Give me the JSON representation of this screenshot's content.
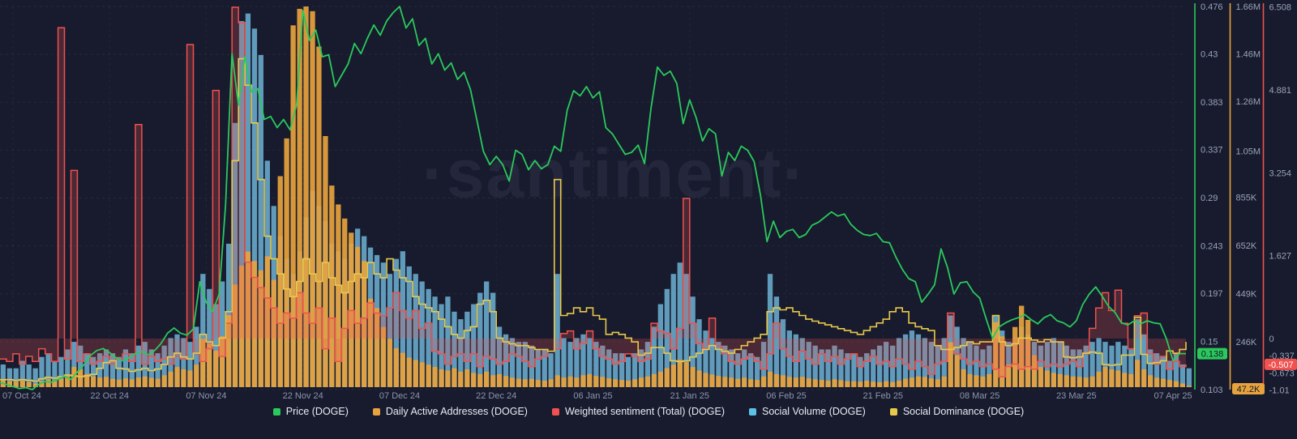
{
  "watermark": {
    "text": "·santiment·"
  },
  "page": {
    "background": "#171b2d"
  },
  "legend": {
    "items": [
      {
        "key": "price",
        "label": "Price (DOGE)",
        "color": "#2bc95c"
      },
      {
        "key": "daily_active_addresses",
        "label": "Daily Active Addresses (DOGE)",
        "color": "#e8a33d"
      },
      {
        "key": "weighted_sentiment",
        "label": "Weighted sentiment (Total) (DOGE)",
        "color": "#f0524f"
      },
      {
        "key": "social_volume",
        "label": "Social Volume (DOGE)",
        "color": "#5bc2e7"
      },
      {
        "key": "social_dominance",
        "label": "Social Dominance (DOGE)",
        "color": "#e8c row94b"
      }
    ]
  },
  "x_axis": {
    "tick_labels": [
      "07 Oct 24",
      "22 Oct 24",
      "07 Nov 24",
      "22 Nov 24",
      "07 Dec 24",
      "22 Dec 24",
      "06 Jan 25",
      "21 Jan 25",
      "06 Feb 25",
      "21 Feb 25",
      "08 Mar 25",
      "23 Mar 25",
      "07 Apr 25"
    ]
  },
  "y_axes": {
    "price": {
      "color": "#2bc95c",
      "ticks": [
        {
          "label": "0.476",
          "value": 0.476
        },
        {
          "label": "0.43",
          "value": 0.43
        },
        {
          "label": "0.383",
          "value": 0.383
        },
        {
          "label": "0.337",
          "value": 0.337
        },
        {
          "label": "0.29",
          "value": 0.29
        },
        {
          "label": "0.243",
          "value": 0.243
        },
        {
          "label": "0.197",
          "value": 0.197
        },
        {
          "label": "0.15",
          "value": 0.15
        },
        {
          "label": "0.103",
          "value": 0.103
        }
      ],
      "current": {
        "label": "0.138",
        "value": 0.138
      }
    },
    "daily_active_addresses": {
      "color": "#e8a33d",
      "ticks": [
        {
          "label": "1.66M",
          "value": 1660
        },
        {
          "label": "1.46M",
          "value": 1460
        },
        {
          "label": "1.26M",
          "value": 1260
        },
        {
          "label": "1.05M",
          "value": 1050
        },
        {
          "label": "855K",
          "value": 855
        },
        {
          "label": "652K",
          "value": 652
        },
        {
          "label": "449K",
          "value": 449
        },
        {
          "label": "246K",
          "value": 246
        }
      ],
      "current": {
        "label": "47.2K",
        "value": 47.2
      }
    },
    "weighted_sentiment": {
      "color": "#f0524f",
      "ticks": [
        {
          "label": "6.508",
          "value": 6.508
        },
        {
          "label": "4.881",
          "value": 4.881
        },
        {
          "label": "3.254",
          "value": 3.254
        },
        {
          "label": "1.627",
          "value": 1.627
        },
        {
          "label": "0",
          "value": 0
        },
        {
          "label": "-0.337",
          "value": -0.337
        },
        {
          "label": "-0.673",
          "value": -0.673
        },
        {
          "label": "-1.01",
          "value": -1.01
        }
      ],
      "current": {
        "label": "-0.507",
        "value": -0.507
      }
    }
  },
  "chart_data": {
    "type": "mixed-timeseries",
    "title": "",
    "start_date": "05 Oct 24",
    "end_date": "07 Apr 25",
    "interval": "1 day",
    "points": 185,
    "x_tick_dates": [
      "07 Oct 24",
      "22 Oct 24",
      "07 Nov 24",
      "22 Nov 24",
      "07 Dec 24",
      "22 Dec 24",
      "06 Jan 25",
      "21 Jan 25",
      "06 Feb 25",
      "21 Feb 25",
      "08 Mar 25",
      "23 Mar 25",
      "07 Apr 25"
    ],
    "legend_position": "bottom",
    "grid": "dashed",
    "series": [
      {
        "key": "price",
        "name": "Price (DOGE)",
        "type": "line",
        "color": "#2bc95c",
        "axis_range": [
          0.103,
          0.476
        ],
        "last_value": 0.138,
        "values": [
          0.11,
          0.108,
          0.106,
          0.104,
          0.105,
          0.103,
          0.108,
          0.111,
          0.11,
          0.113,
          0.116,
          0.113,
          0.12,
          0.127,
          0.136,
          0.141,
          0.143,
          0.139,
          0.134,
          0.131,
          0.134,
          0.138,
          0.14,
          0.137,
          0.141,
          0.148,
          0.158,
          0.163,
          0.158,
          0.156,
          0.162,
          0.208,
          0.188,
          0.179,
          0.196,
          0.283,
          0.43,
          0.38,
          0.427,
          0.393,
          0.396,
          0.366,
          0.369,
          0.358,
          0.366,
          0.356,
          0.38,
          0.472,
          0.443,
          0.453,
          0.427,
          0.429,
          0.398,
          0.409,
          0.42,
          0.44,
          0.43,
          0.445,
          0.458,
          0.448,
          0.462,
          0.47,
          0.476,
          0.455,
          0.464,
          0.438,
          0.445,
          0.42,
          0.43,
          0.414,
          0.421,
          0.405,
          0.412,
          0.395,
          0.365,
          0.335,
          0.322,
          0.33,
          0.322,
          0.306,
          0.336,
          0.332,
          0.317,
          0.326,
          0.318,
          0.322,
          0.34,
          0.335,
          0.375,
          0.394,
          0.389,
          0.398,
          0.387,
          0.393,
          0.358,
          0.352,
          0.342,
          0.332,
          0.334,
          0.341,
          0.323,
          0.377,
          0.417,
          0.409,
          0.413,
          0.401,
          0.362,
          0.385,
          0.368,
          0.345,
          0.357,
          0.352,
          0.311,
          0.334,
          0.326,
          0.34,
          0.336,
          0.325,
          0.292,
          0.247,
          0.267,
          0.251,
          0.257,
          0.259,
          0.251,
          0.254,
          0.263,
          0.266,
          0.271,
          0.276,
          0.272,
          0.274,
          0.264,
          0.258,
          0.254,
          0.253,
          0.255,
          0.247,
          0.246,
          0.232,
          0.22,
          0.211,
          0.208,
          0.188,
          0.196,
          0.205,
          0.24,
          0.222,
          0.196,
          0.207,
          0.208,
          0.198,
          0.192,
          0.172,
          0.153,
          0.164,
          0.168,
          0.171,
          0.173,
          0.176,
          0.171,
          0.167,
          0.173,
          0.176,
          0.17,
          0.168,
          0.164,
          0.17,
          0.186,
          0.196,
          0.203,
          0.194,
          0.184,
          0.178,
          0.168,
          0.166,
          0.17,
          0.167,
          0.17,
          0.168,
          0.167,
          0.152,
          0.131,
          0.138,
          0.138
        ]
      },
      {
        "key": "daily_active_addresses",
        "name": "Daily Active Addresses (DOGE)",
        "type": "bar",
        "color": "#e8a33d",
        "unit": "K addresses",
        "axis_range_k": [
          44.5,
          1660
        ],
        "last_value_k": 47.2,
        "values": [
          75,
          70,
          68,
          72,
          65,
          60,
          70,
          78,
          74,
          80,
          95,
          130,
          120,
          100,
          90,
          85,
          88,
          80,
          76,
          82,
          78,
          85,
          90,
          84,
          80,
          95,
          110,
          130,
          120,
          115,
          140,
          250,
          230,
          200,
          260,
          350,
          480,
          560,
          620,
          580,
          540,
          600,
          500,
          940,
          1100,
          1580,
          1650,
          1660,
          1640,
          1490,
          1110,
          900,
          820,
          760,
          700,
          640,
          580,
          420,
          380,
          300,
          250,
          210,
          190,
          170,
          160,
          150,
          140,
          130,
          120,
          115,
          125,
          110,
          120,
          105,
          100,
          110,
          95,
          100,
          92,
          85,
          80,
          78,
          80,
          75,
          72,
          78,
          95,
          85,
          90,
          85,
          95,
          100,
          92,
          88,
          82,
          78,
          75,
          72,
          78,
          85,
          90,
          100,
          110,
          125,
          140,
          160,
          150,
          130,
          115,
          105,
          98,
          92,
          88,
          85,
          80,
          85,
          78,
          75,
          90,
          110,
          100,
          95,
          88,
          85,
          88,
          82,
          78,
          75,
          72,
          78,
          74,
          70,
          70,
          68,
          72,
          68,
          65,
          70,
          66,
          72,
          80,
          85,
          90,
          88,
          82,
          78,
          90,
          235,
          180,
          120,
          100,
          95,
          90,
          100,
          320,
          260,
          140,
          300,
          390,
          330,
          180,
          130,
          115,
          105,
          100,
          95,
          90,
          88,
          85,
          90,
          110,
          130,
          120,
          115,
          105,
          100,
          160,
          120,
          95,
          85,
          80,
          75,
          70,
          60,
          47.2
        ]
      },
      {
        "key": "weighted_sentiment",
        "name": "Weighted sentiment (Total) (DOGE)",
        "type": "step-area",
        "color": "#f0524f",
        "baseline": 0,
        "axis_range": [
          -1.01,
          6.508
        ],
        "last_value": -0.507,
        "values": [
          -0.4,
          -0.45,
          -0.3,
          -0.5,
          -0.35,
          -0.45,
          -0.2,
          -0.3,
          -0.45,
          6.1,
          -0.4,
          3.3,
          -0.45,
          -0.3,
          -0.5,
          -0.45,
          -0.35,
          -0.5,
          -0.4,
          -0.3,
          -0.45,
          4.2,
          -0.5,
          -0.35,
          -0.45,
          -0.4,
          -0.5,
          -0.35,
          -0.4,
          5.77,
          -0.3,
          -0.45,
          -0.2,
          4.87,
          -0.35,
          0.3,
          6.5,
          6.2,
          1.5,
          1.2,
          1.0,
          0.8,
          0.6,
          0.3,
          0.5,
          0.4,
          0.9,
          0.5,
          0.3,
          0.6,
          -0.2,
          0.4,
          -0.45,
          0.2,
          0.55,
          0.3,
          0.4,
          0.7,
          0.5,
          0.45,
          0.6,
          0.9,
          0.55,
          0.4,
          0.55,
          0.2,
          0.3,
          -0.25,
          -0.3,
          -0.5,
          -0.35,
          -0.3,
          -0.45,
          -0.3,
          -0.55,
          -0.35,
          -0.4,
          -0.5,
          -0.45,
          -0.3,
          -0.35,
          -0.45,
          -0.55,
          -0.4,
          -0.35,
          -0.25,
          -0.2,
          0.1,
          0.15,
          -0.2,
          -0.1,
          0.15,
          -0.2,
          -0.35,
          -0.4,
          -0.5,
          -0.45,
          -0.3,
          -0.35,
          -0.45,
          -0.4,
          0.3,
          0.15,
          0.1,
          -0.2,
          0.2,
          2.75,
          0.3,
          -0.1,
          -0.2,
          0.4,
          -0.15,
          -0.3,
          -0.45,
          -0.5,
          -0.4,
          -0.35,
          -0.45,
          -0.6,
          -0.3,
          0.3,
          -0.2,
          -0.35,
          -0.45,
          -0.25,
          -0.4,
          -0.5,
          -0.3,
          -0.45,
          -0.35,
          -0.5,
          -0.4,
          -0.3,
          -0.55,
          -0.45,
          -0.35,
          -0.5,
          -0.45,
          -0.55,
          -0.4,
          -0.5,
          -0.6,
          -0.45,
          -0.55,
          -0.7,
          -0.5,
          -0.45,
          0.5,
          -0.3,
          -0.4,
          -0.5,
          -0.45,
          -0.55,
          -0.5,
          -0.6,
          -0.75,
          -0.55,
          -0.5,
          -0.6,
          -0.55,
          -0.6,
          -0.45,
          -0.55,
          -0.5,
          -0.55,
          -0.5,
          -0.45,
          -0.55,
          -0.3,
          0.2,
          0.6,
          0.9,
          0.55,
          0.95,
          0.3,
          -0.2,
          0.45,
          0.5,
          -0.3,
          -0.5,
          -0.35,
          -0.6,
          -0.45,
          -0.55,
          -0.507
        ]
      },
      {
        "key": "social_volume",
        "name": "Social Volume (DOGE)",
        "type": "bar",
        "color": "#74bcdf",
        "unit": "index 0-100 of bar height",
        "values": [
          6,
          5,
          5,
          7,
          6,
          5,
          8,
          9,
          7,
          8,
          10,
          12,
          11,
          9,
          8,
          9,
          10,
          9,
          8,
          10,
          9,
          11,
          12,
          10,
          9,
          11,
          13,
          14,
          13,
          12,
          16,
          30,
          26,
          22,
          28,
          38,
          70,
          97,
          99,
          95,
          88,
          60,
          48,
          40,
          34,
          30,
          36,
          45,
          52,
          48,
          44,
          38,
          36,
          34,
          38,
          42,
          40,
          37,
          35,
          33,
          30,
          34,
          36,
          32,
          30,
          28,
          26,
          24,
          22,
          24,
          20,
          18,
          20,
          22,
          25,
          28,
          25,
          16,
          14,
          13,
          12,
          12,
          11,
          10,
          10,
          9,
          30,
          13,
          12,
          13,
          14,
          13,
          12,
          11,
          10,
          9,
          9,
          8,
          9,
          10,
          12,
          16,
          22,
          26,
          30,
          33,
          30,
          24,
          18,
          15,
          13,
          12,
          11,
          10,
          9,
          10,
          9,
          8,
          12,
          30,
          24,
          18,
          15,
          14,
          13,
          12,
          11,
          10,
          10,
          11,
          10,
          9,
          9,
          8,
          9,
          10,
          11,
          12,
          11,
          13,
          14,
          15,
          14,
          13,
          12,
          11,
          13,
          19,
          16,
          13,
          12,
          11,
          10,
          11,
          19,
          15,
          12,
          13,
          16,
          14,
          12,
          11,
          12,
          13,
          12,
          11,
          10,
          10,
          11,
          12,
          13,
          12,
          11,
          12,
          11,
          10,
          18,
          14,
          10,
          9,
          8,
          7,
          9,
          6,
          5
        ]
      },
      {
        "key": "social_dominance",
        "name": "Social Dominance (DOGE)",
        "type": "step-line",
        "color": "#e8c94b",
        "unit": "index 0-100 of plot height",
        "values": [
          2,
          2,
          1.8,
          2,
          1.8,
          1.6,
          2.2,
          2.6,
          2.4,
          2.8,
          3.2,
          3,
          2.8,
          3,
          3.4,
          5,
          6.5,
          7,
          5,
          4.8,
          4.2,
          4.6,
          5,
          4.4,
          4.8,
          6,
          8,
          9,
          8,
          7.5,
          9,
          14,
          12,
          11,
          13,
          20,
          60,
          87,
          80,
          70,
          55,
          40,
          34,
          30,
          26,
          24,
          28,
          34,
          30,
          28,
          33,
          29,
          27,
          25,
          28,
          30,
          29,
          33,
          30,
          29,
          34,
          31,
          29,
          28,
          24,
          22,
          21,
          20,
          18,
          16,
          14,
          13,
          15,
          16,
          22,
          23,
          20,
          13,
          12,
          11.5,
          11,
          11,
          10.5,
          10,
          10,
          9.5,
          55,
          19,
          19.5,
          21,
          20,
          21,
          19,
          18,
          14,
          14.5,
          14,
          13,
          12,
          8.5,
          9,
          10.5,
          10.5,
          9,
          7,
          6.8,
          7,
          8,
          9,
          10,
          11,
          10,
          9.5,
          9,
          10,
          11,
          12,
          13,
          14,
          20,
          21,
          20.5,
          21,
          20,
          19,
          18,
          17.5,
          17,
          16.5,
          16,
          15.5,
          15,
          14.5,
          14,
          15,
          16,
          17,
          18,
          20,
          21,
          20,
          17,
          16,
          15.5,
          15,
          11,
          10,
          10,
          10.5,
          11,
          12,
          11.5,
          12,
          12,
          19,
          12,
          11,
          11.5,
          13,
          13,
          12.5,
          12,
          12.6,
          12,
          12,
          8,
          7.8,
          8,
          9,
          9.3,
          9,
          6,
          5.8,
          6,
          8.5,
          8.5,
          18.5,
          8.7,
          6.3,
          6.5,
          7,
          9.6,
          9,
          10,
          12
        ]
      }
    ]
  }
}
